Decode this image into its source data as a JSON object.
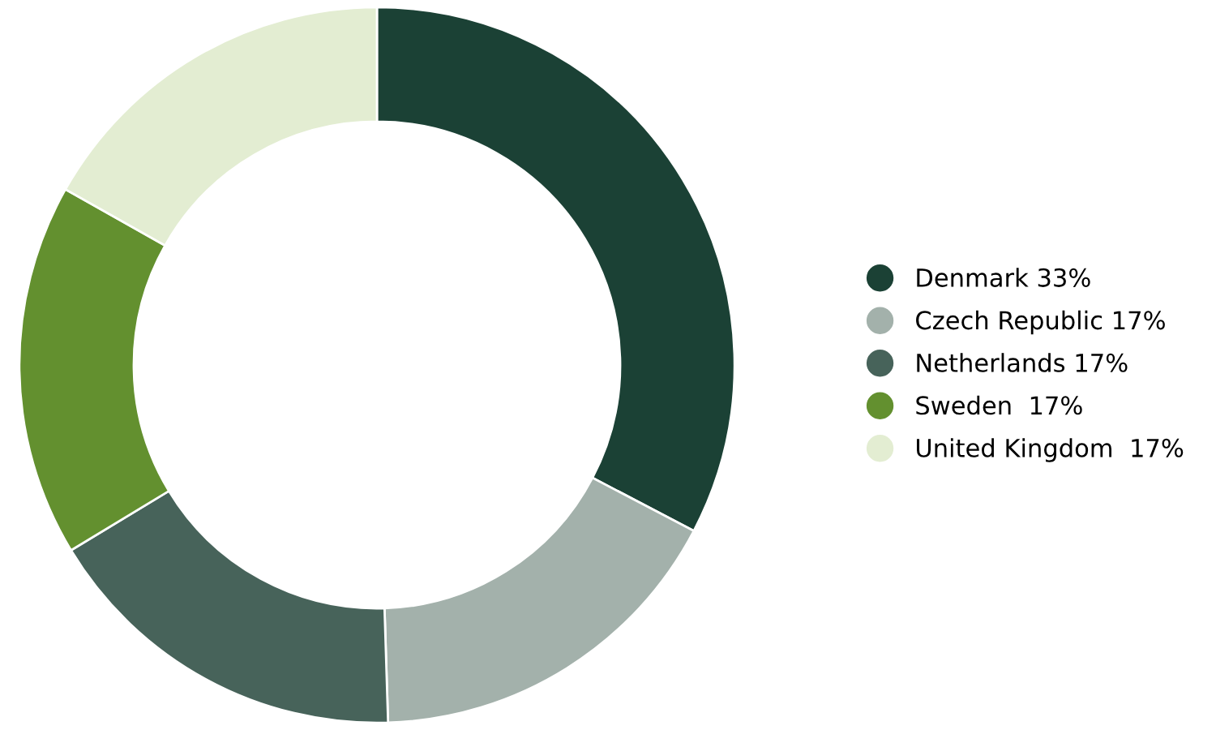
{
  "chart_data": {
    "type": "donut",
    "categories": [
      "Denmark 33%",
      "Czech Republic 17%",
      "Netherlands 17%",
      "Sweden  17%",
      "United Kingdom  17%"
    ],
    "values": [
      33,
      17,
      17,
      17,
      17
    ],
    "colors": [
      "#1b4135",
      "#a3b1ab",
      "#47635a",
      "#63902f",
      "#e3edd2"
    ],
    "legend": "right"
  }
}
